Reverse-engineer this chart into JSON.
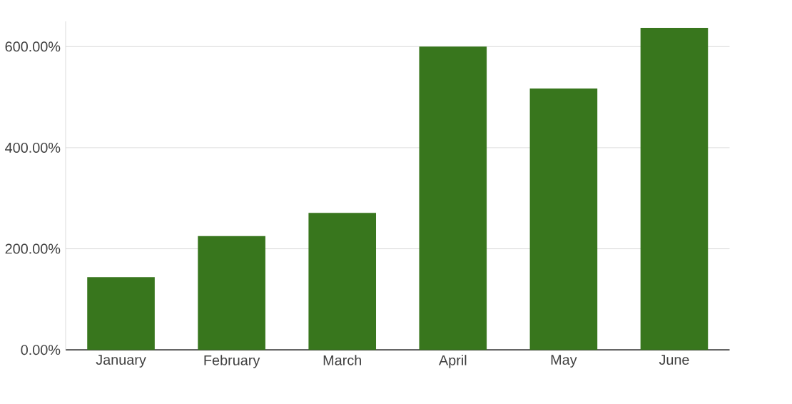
{
  "chart_data": {
    "type": "bar",
    "categories": [
      "January",
      "February",
      "March",
      "April",
      "May",
      "June"
    ],
    "values": [
      144,
      225,
      271,
      600,
      517,
      637
    ],
    "color": "#38761d",
    "ylim": [
      0,
      650
    ],
    "yticks": [
      {
        "value": 0,
        "label": "0.00%"
      },
      {
        "value": 200,
        "label": "200.00%"
      },
      {
        "value": 400,
        "label": "400.00%"
      },
      {
        "value": 600,
        "label": "600.00%"
      }
    ],
    "grid": "y"
  }
}
